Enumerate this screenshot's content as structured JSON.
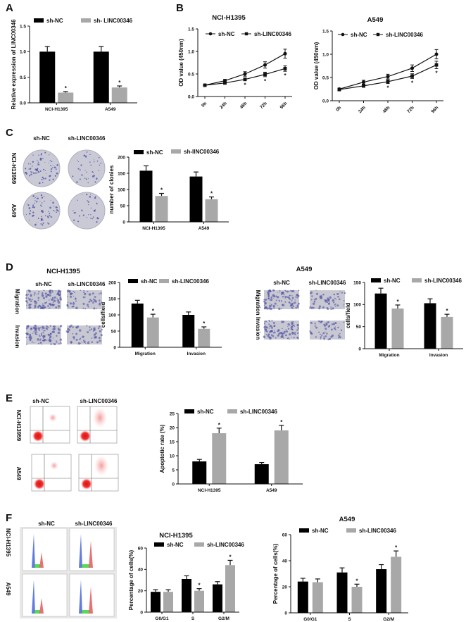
{
  "panel_labels": [
    "A",
    "B",
    "C",
    "D",
    "E",
    "F"
  ],
  "colors": {
    "sh_nc": "#000000",
    "sh_linc": "#a8a8a8",
    "stain": "#4b4ba0",
    "flow": "#e01818",
    "g1": "#3a5ad8",
    "s_phase": "#30d030",
    "g2": "#e05050"
  },
  "images": {
    "C": {
      "col_labels": [
        "sh-NC",
        "sh-LINC00346"
      ],
      "row_labels": [
        "NCI-H13959",
        "A549"
      ]
    },
    "D1": {
      "title": "NCI-H1395",
      "col_labels": [
        "sh-NC",
        "sh-LINC00346"
      ],
      "row_labels": [
        "Migration",
        "Invasion"
      ]
    },
    "D2": {
      "title": "A549",
      "col_labels": [
        "sh-NC",
        "sh-LINC00346"
      ],
      "row_label": "Migration Invasion"
    },
    "E": {
      "col_labels": [
        "sh-NC",
        "sh-LINC00346"
      ],
      "row_labels": [
        "NCI-H13959",
        "A549"
      ]
    },
    "F": {
      "col_labels": [
        "sh-NC",
        "sh-LINC00346"
      ],
      "row_labels": [
        "NCI-H1395",
        "A549"
      ]
    }
  },
  "chart_data": [
    {
      "type": "bar",
      "title": "",
      "ylabel": "Relative expression of LINC00346",
      "ylim": [
        0,
        1.5
      ],
      "yticks": [
        "0.0",
        "0.5",
        "1.0",
        "1.5"
      ],
      "categories": [
        "NCI-H1395",
        "A549"
      ],
      "series": [
        {
          "name": "sh-NC",
          "values": [
            1.0,
            1.0
          ],
          "errors": [
            0.1,
            0.1
          ]
        },
        {
          "name": "sh- LINC00346",
          "values": [
            0.2,
            0.3
          ],
          "errors": [
            0.02,
            0.03
          ]
        }
      ],
      "significance": [
        "*",
        "*"
      ]
    },
    {
      "type": "line",
      "title": "NCI-H1395",
      "ylabel": "OD value (450nm)",
      "ylim": [
        0,
        1.5
      ],
      "yticks": [
        "0.0",
        "0.5",
        "1.0",
        "1.5"
      ],
      "x": [
        "0h",
        "24h",
        "48h",
        "72h",
        "96h"
      ],
      "series": [
        {
          "name": "sh-NC",
          "marker": "circle",
          "values": [
            0.25,
            0.35,
            0.5,
            0.7,
            0.95
          ],
          "errors": [
            0.02,
            0.03,
            0.05,
            0.07,
            0.1
          ]
        },
        {
          "name": "sh-LINC00346",
          "marker": "square",
          "values": [
            0.25,
            0.3,
            0.38,
            0.49,
            0.62
          ],
          "errors": [
            0.02,
            0.02,
            0.03,
            0.05,
            0.06
          ]
        }
      ],
      "significance": [
        "",
        "",
        "*",
        "*",
        "*"
      ]
    },
    {
      "type": "line",
      "title": "A549",
      "ylabel": "OD value (450nm)",
      "ylim": [
        0,
        1.5
      ],
      "yticks": [
        "0.0",
        "0.5",
        "1.0",
        "1.5"
      ],
      "x": [
        "0h",
        "24h",
        "48h",
        "72h",
        "96h"
      ],
      "series": [
        {
          "name": "sh-NC",
          "marker": "circle",
          "values": [
            0.25,
            0.4,
            0.52,
            0.7,
            1.0
          ],
          "errors": [
            0.02,
            0.04,
            0.05,
            0.07,
            0.1
          ]
        },
        {
          "name": "sh-LINC00346",
          "marker": "square",
          "values": [
            0.24,
            0.32,
            0.41,
            0.53,
            0.77
          ],
          "errors": [
            0.02,
            0.03,
            0.04,
            0.05,
            0.08
          ]
        }
      ],
      "significance": [
        "",
        "",
        "*",
        "*",
        "*"
      ]
    },
    {
      "type": "bar",
      "title": "",
      "ylabel": "number of clonies",
      "ylim": [
        0,
        200
      ],
      "yticks": [
        "0",
        "50",
        "100",
        "150",
        "200"
      ],
      "categories": [
        "NCI-H1395",
        "A549"
      ],
      "series": [
        {
          "name": "sh-NC",
          "values": [
            158,
            140
          ],
          "errors": [
            15,
            14
          ]
        },
        {
          "name": "sh-lINC00346",
          "values": [
            80,
            70
          ],
          "errors": [
            8,
            7
          ]
        }
      ],
      "significance": [
        "*",
        "*"
      ]
    },
    {
      "type": "bar",
      "title": "",
      "ylabel": "cells/field",
      "ylim": [
        0,
        200
      ],
      "yticks": [
        "0",
        "50",
        "100",
        "150",
        "200"
      ],
      "categories": [
        "Migration",
        "Invasion"
      ],
      "series": [
        {
          "name": "sh-NC",
          "values": [
            135,
            100
          ],
          "errors": [
            10,
            9
          ]
        },
        {
          "name": "sh-LINC00346",
          "values": [
            92,
            57
          ],
          "errors": [
            10,
            6
          ]
        }
      ],
      "significance": [
        "*",
        "*"
      ]
    },
    {
      "type": "bar",
      "title": "",
      "ylabel": "cells/field",
      "ylim": [
        0,
        150
      ],
      "yticks": [
        "0",
        "50",
        "100",
        "150"
      ],
      "categories": [
        "Migration",
        "Invasion"
      ],
      "series": [
        {
          "name": "sh-NC",
          "values": [
            125,
            103
          ],
          "errors": [
            12,
            10
          ]
        },
        {
          "name": "sh-LINC00346",
          "values": [
            91,
            72
          ],
          "errors": [
            8,
            6
          ]
        }
      ],
      "significance": [
        "*",
        "*"
      ]
    },
    {
      "type": "bar",
      "title": "",
      "ylabel": "Apoptotic rate (%)",
      "ylim": [
        0,
        25
      ],
      "yticks": [
        "0",
        "5",
        "10",
        "15",
        "20",
        "25"
      ],
      "categories": [
        "NCI-H1395",
        "A549"
      ],
      "series": [
        {
          "name": "sh-NC",
          "values": [
            8,
            7
          ],
          "errors": [
            0.7,
            0.6
          ]
        },
        {
          "name": "sh-LINC00346",
          "values": [
            18,
            19
          ],
          "errors": [
            1.8,
            1.8
          ]
        }
      ],
      "significance": [
        "*",
        "*"
      ]
    },
    {
      "type": "bar",
      "title": "NCI-H1395",
      "ylabel": "Percentage of cells(%)",
      "ylim": [
        0,
        60
      ],
      "yticks": [
        "0",
        "20",
        "40",
        "60"
      ],
      "categories": [
        "G0/G1",
        "S",
        "G2/M"
      ],
      "series": [
        {
          "name": "sh-NC",
          "values": [
            19,
            31,
            26
          ],
          "errors": [
            2,
            3,
            2.5
          ]
        },
        {
          "name": "sh-LINC00346",
          "values": [
            19,
            20,
            44
          ],
          "errors": [
            2,
            2,
            4.5
          ]
        }
      ],
      "significance": [
        "",
        "*",
        "*"
      ]
    },
    {
      "type": "bar",
      "title": "A549",
      "ylabel": "Percentage of cells(%)",
      "ylim": [
        0,
        60
      ],
      "yticks": [
        "0",
        "20",
        "40",
        "60"
      ],
      "categories": [
        "G0/G1",
        "S",
        "G2/M"
      ],
      "series": [
        {
          "name": "sh-NC",
          "values": [
            24,
            31,
            33.5
          ],
          "errors": [
            2.5,
            3.5,
            3.5
          ]
        },
        {
          "name": "sh-LINC00346",
          "values": [
            23.5,
            20,
            43
          ],
          "errors": [
            2.5,
            2,
            4.5
          ]
        }
      ],
      "significance": [
        "",
        "*",
        "*"
      ]
    }
  ]
}
